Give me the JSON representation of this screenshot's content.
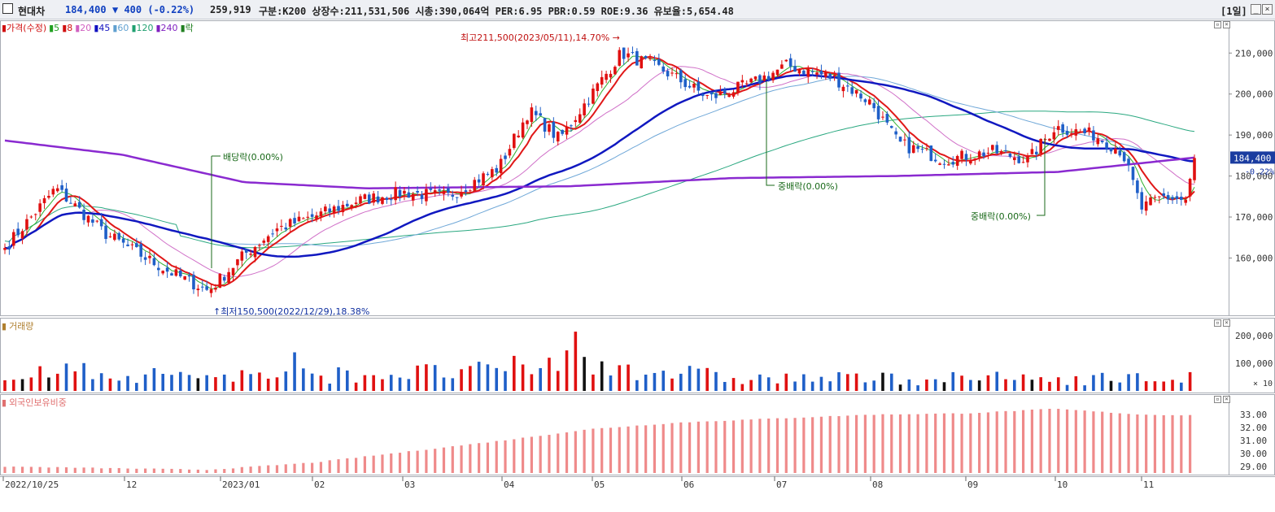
{
  "header": {
    "name": "현대차",
    "price": "184,400",
    "change": "▼ 400 (-0.22%)",
    "volume": "259,919",
    "info": "구분:K200 상장수:211,531,506 시총:390,064억 PER:6.95 PBR:0.59 ROE:9.36 유보율:5,654.48",
    "period": "[1일]"
  },
  "price_legend": [
    {
      "label": "가격(수정)",
      "color": "#d01010"
    },
    {
      "label": "5",
      "color": "#20a020"
    },
    {
      "label": "8",
      "color": "#d01010"
    },
    {
      "label": "20",
      "color": "#d060c0"
    },
    {
      "label": "45",
      "color": "#1010c0"
    },
    {
      "label": "60",
      "color": "#60a0d0"
    },
    {
      "label": "120",
      "color": "#20a070"
    },
    {
      "label": "240",
      "color": "#8020c0"
    },
    {
      "label": "락",
      "color": "#208020"
    }
  ],
  "volume_legend": "거래량",
  "foreign_legend": "외국인보유비중",
  "annotations": {
    "high": "최고211,500(2023/05/11),14.70%",
    "low": "최저150,500(2022/12/29),18.38%",
    "dividend": "배당락(0.00%)",
    "rights1": "중배락(0.00%)",
    "rights2": "중배락(0.00%)"
  },
  "price_axis": [
    "210,000",
    "200,000",
    "190,000",
    "180,000",
    "170,000",
    "160,000"
  ],
  "current_price_tag": "184,400",
  "current_change_tag": "-0.22%",
  "volume_axis": [
    "200,000",
    "100,000"
  ],
  "volume_unit": "× 10",
  "foreign_axis": [
    "33.00",
    "32.00",
    "31.00",
    "30.00",
    "29.00"
  ],
  "x_labels": [
    "2022/10/25",
    "12",
    "2023/01",
    "02",
    "03",
    "04",
    "05",
    "06",
    "07",
    "08",
    "09",
    "10",
    "11"
  ],
  "colors": {
    "up": "#e01010",
    "down": "#1f5fc8",
    "ma45": "#1018c0",
    "ma240": "#8a2ad0",
    "foreign": "#ef8a8a"
  },
  "chart_data": {
    "type": "candlestick",
    "title": "현대차 일봉",
    "ylim": [
      148000,
      216000
    ],
    "close_anchors": [
      {
        "date": "2022/10/25",
        "value": 162000
      },
      {
        "date": "2022/11/10",
        "value": 177000
      },
      {
        "date": "2022/11/25",
        "value": 166000
      },
      {
        "date": "2022/12/15",
        "value": 157000
      },
      {
        "date": "2022/12/29",
        "value": 152000
      },
      {
        "date": "2023/01/10",
        "value": 161000
      },
      {
        "date": "2023/01/20",
        "value": 167000
      },
      {
        "date": "2023/02/01",
        "value": 170000
      },
      {
        "date": "2023/02/15",
        "value": 174000
      },
      {
        "date": "2023/03/01",
        "value": 176000
      },
      {
        "date": "2023/03/15",
        "value": 175000
      },
      {
        "date": "2023/03/31",
        "value": 182000
      },
      {
        "date": "2023/04/10",
        "value": 196000
      },
      {
        "date": "2023/04/20",
        "value": 189000
      },
      {
        "date": "2023/05/11",
        "value": 210000
      },
      {
        "date": "2023/05/25",
        "value": 206000
      },
      {
        "date": "2023/06/10",
        "value": 199000
      },
      {
        "date": "2023/06/25",
        "value": 203000
      },
      {
        "date": "2023/07/05",
        "value": 207000
      },
      {
        "date": "2023/07/20",
        "value": 204000
      },
      {
        "date": "2023/08/01",
        "value": 198000
      },
      {
        "date": "2023/08/10",
        "value": 188000
      },
      {
        "date": "2023/08/25",
        "value": 184000
      },
      {
        "date": "2023/09/10",
        "value": 186000
      },
      {
        "date": "2023/09/22",
        "value": 184000
      },
      {
        "date": "2023/10/01",
        "value": 192000
      },
      {
        "date": "2023/10/15",
        "value": 190000
      },
      {
        "date": "2023/10/25",
        "value": 186000
      },
      {
        "date": "2023/11/01",
        "value": 172000
      },
      {
        "date": "2023/11/10",
        "value": 175000
      },
      {
        "date": "2023/11/20",
        "value": 174000
      },
      {
        "date": "2023/11/24",
        "value": 184400
      }
    ],
    "volume_anchors": [
      {
        "date": "2022/11",
        "value": 90000
      },
      {
        "date": "2023/01",
        "value": 70000
      },
      {
        "date": "2023/04/28",
        "value": 215000
      },
      {
        "date": "2023/08",
        "value": 60000
      },
      {
        "date": "2023/11",
        "value": 60000
      }
    ],
    "foreign_anchors": [
      {
        "date": "2022/10/25",
        "value": 29.0
      },
      {
        "date": "2022/12/29",
        "value": 28.75
      },
      {
        "date": "2023/02/01",
        "value": 29.3
      },
      {
        "date": "2023/03/01",
        "value": 30.1
      },
      {
        "date": "2023/04/01",
        "value": 31.0
      },
      {
        "date": "2023/05/01",
        "value": 31.9
      },
      {
        "date": "2023/06/01",
        "value": 32.4
      },
      {
        "date": "2023/07/01",
        "value": 32.7
      },
      {
        "date": "2023/08/01",
        "value": 33.0
      },
      {
        "date": "2023/09/01",
        "value": 33.1
      },
      {
        "date": "2023/10/01",
        "value": 33.45
      },
      {
        "date": "2023/11/01",
        "value": 33.0
      },
      {
        "date": "2023/11/24",
        "value": 32.95
      }
    ]
  }
}
